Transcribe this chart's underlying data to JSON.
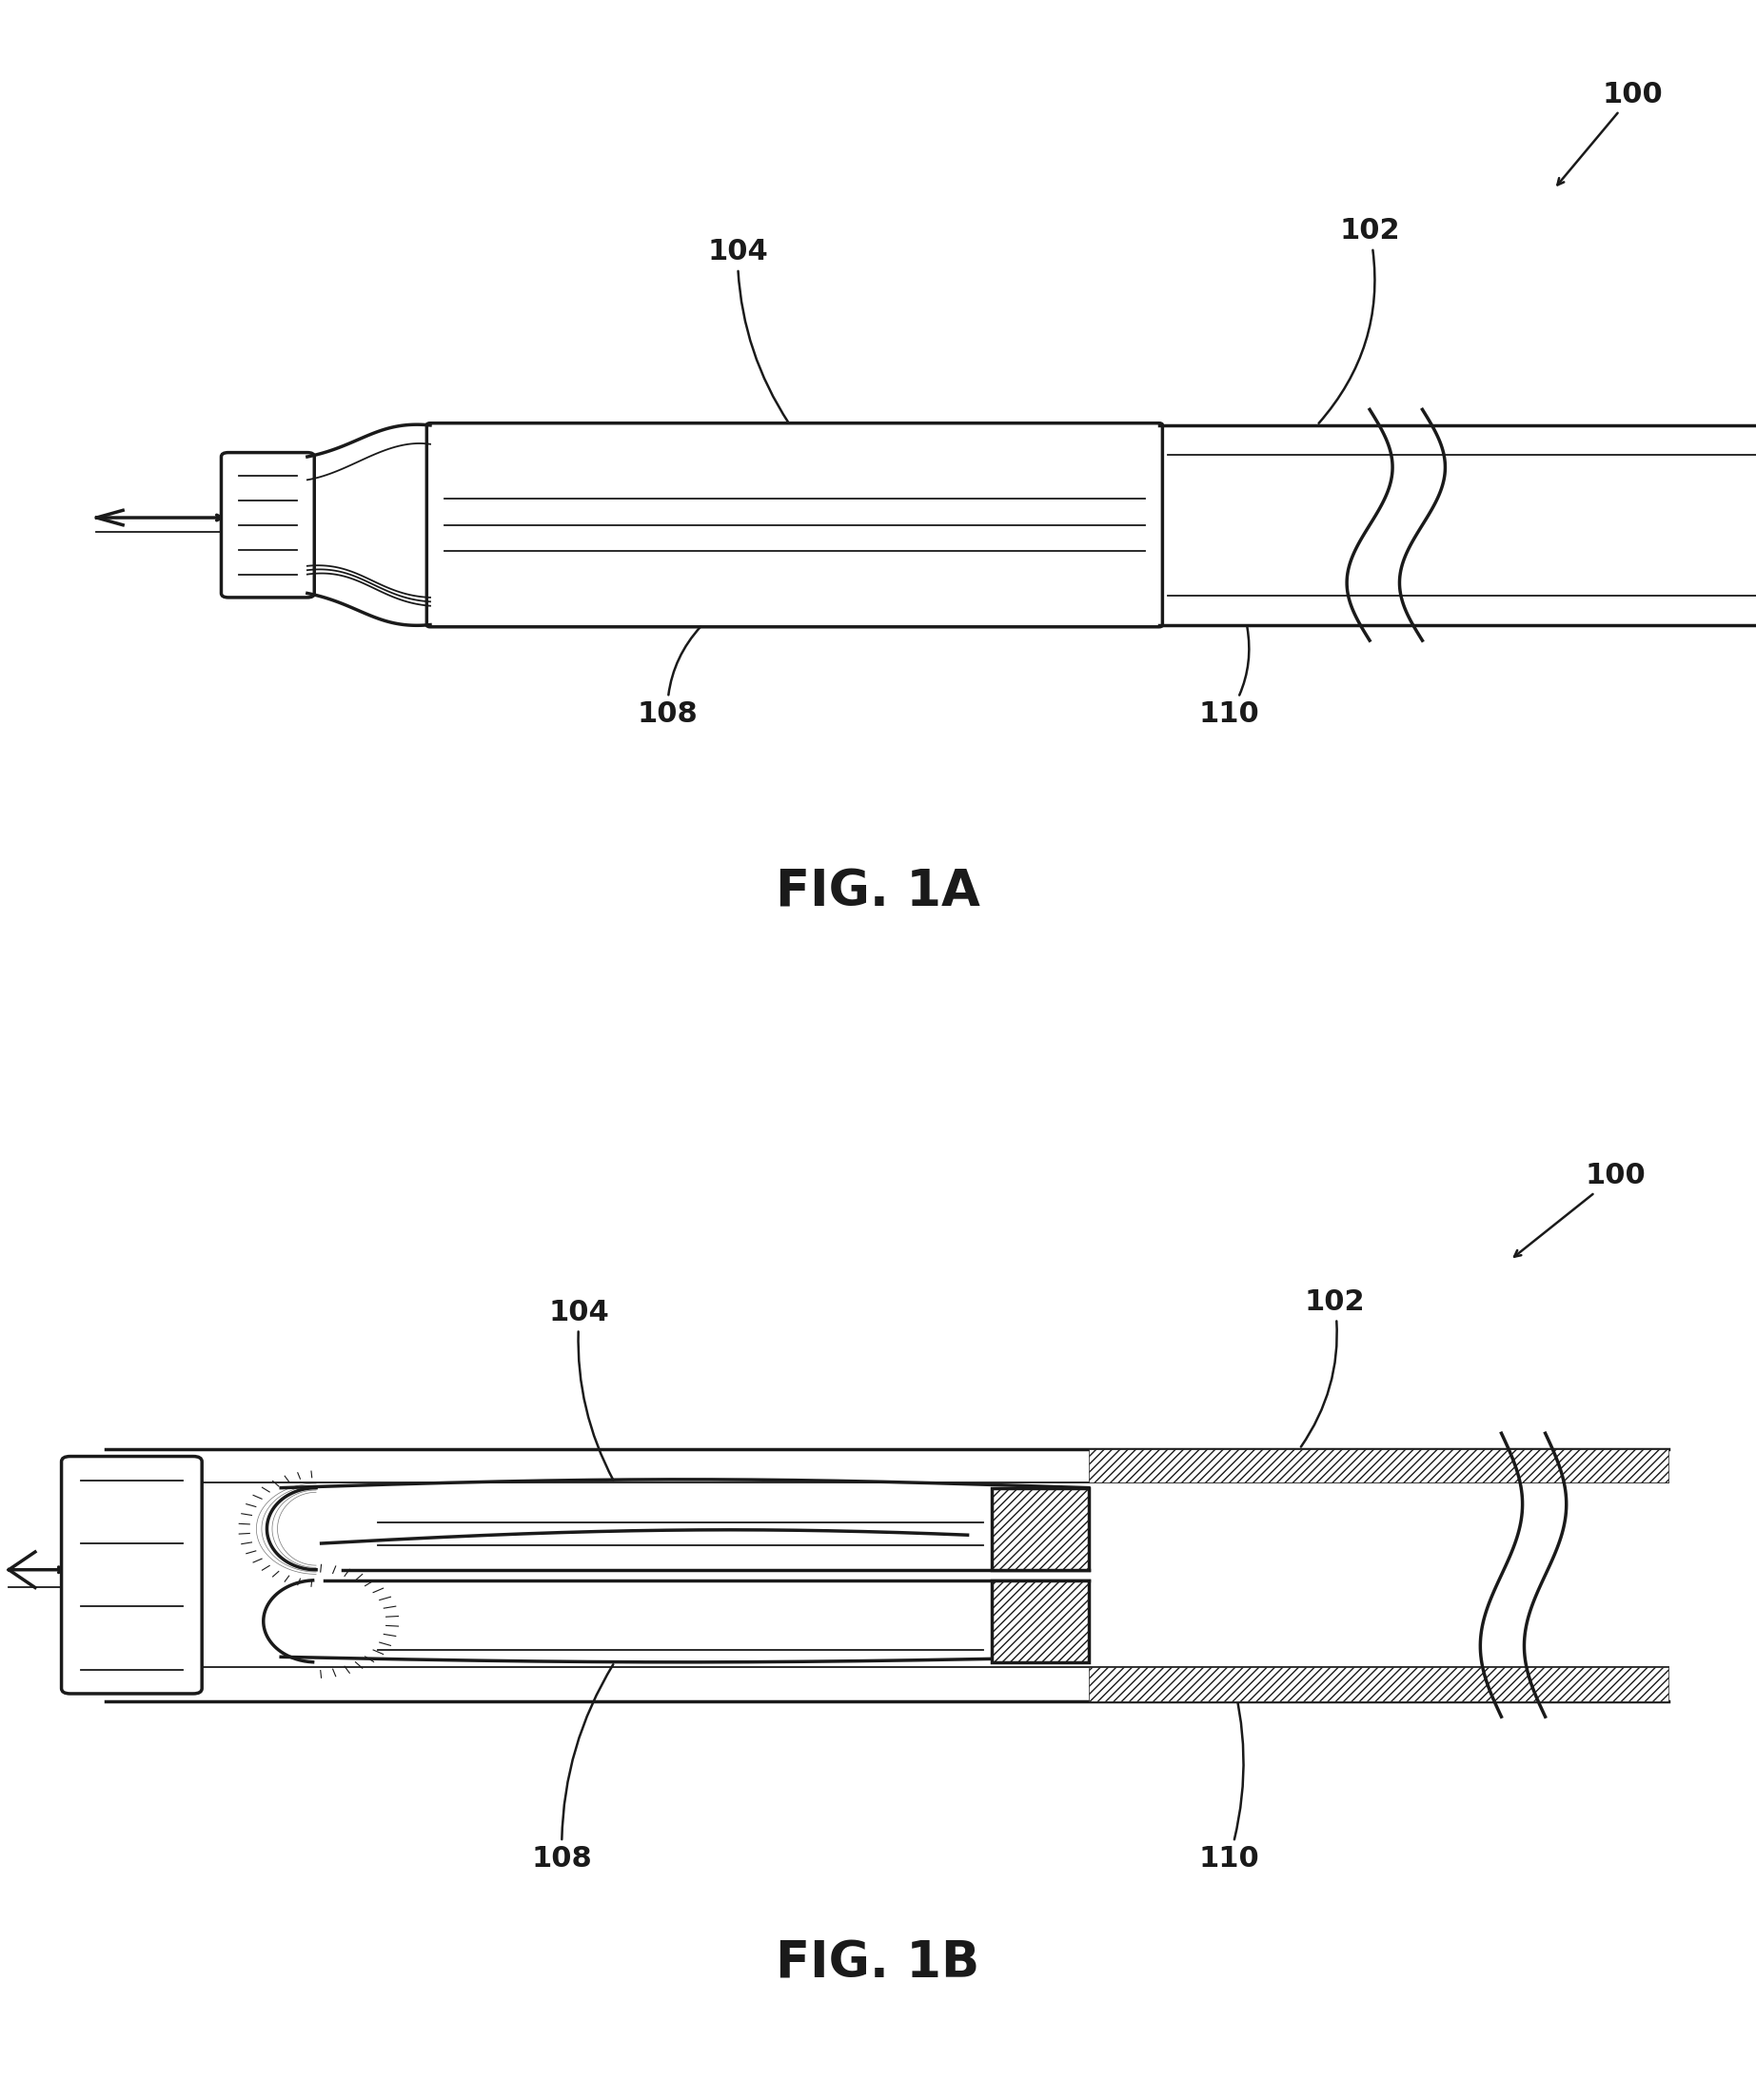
{
  "bg_color": "#ffffff",
  "line_color": "#1a1a1a",
  "lw_main": 2.5,
  "lw_thin": 1.3,
  "lw_leader": 1.8,
  "label_fs": 22,
  "fig_label_fs": 38,
  "fig1a_label": "FIG. 1A",
  "fig1b_label": "FIG. 1B"
}
